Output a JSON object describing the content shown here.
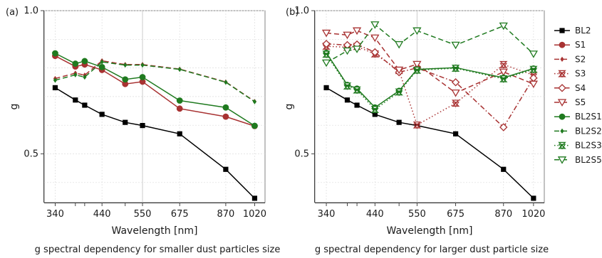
{
  "chart_data": [
    {
      "type": "line",
      "panel_label": "(a)",
      "caption": "g spectral dependency for smaller dust particles size",
      "xlabel": "Wavelength [nm]",
      "ylabel": "g",
      "xscale": "log",
      "xlim": [
        320,
        1080
      ],
      "ylim": [
        0.33,
        1.0
      ],
      "xticks": [
        340,
        440,
        550,
        675,
        870,
        1020
      ],
      "yticks": [
        0.5,
        1.0
      ],
      "ytick_labels": [
        "0.5",
        "1.0"
      ],
      "grid": true,
      "x": [
        340,
        380,
        400,
        440,
        500,
        550,
        675,
        870,
        1020
      ],
      "series": [
        {
          "name": "BL2",
          "color": "#000000",
          "dash": "solid",
          "marker": "square",
          "values": [
            0.731,
            0.688,
            0.67,
            0.638,
            0.61,
            0.599,
            0.57,
            0.446,
            0.345
          ]
        },
        {
          "name": "S1",
          "color": "#a83232",
          "dash": "solid",
          "marker": "circle",
          "values": [
            0.842,
            0.805,
            0.812,
            0.793,
            0.744,
            0.752,
            0.658,
            0.63,
            0.597
          ]
        },
        {
          "name": "S2",
          "color": "#a83232",
          "dash": "longdash",
          "marker": "diamond",
          "values": [
            0.763,
            0.782,
            0.775,
            0.825,
            0.812,
            0.812,
            0.796,
            0.751,
            0.683
          ]
        },
        {
          "name": "BL2S1",
          "color": "#1f7a1f",
          "dash": "solid",
          "marker": "circle",
          "values": [
            0.851,
            0.815,
            0.824,
            0.803,
            0.76,
            0.768,
            0.686,
            0.662,
            0.598
          ]
        },
        {
          "name": "BL2S2",
          "color": "#1f7a1f",
          "dash": "longdash",
          "marker": "diamond",
          "values": [
            0.757,
            0.776,
            0.768,
            0.821,
            0.81,
            0.81,
            0.795,
            0.75,
            0.682
          ]
        }
      ]
    },
    {
      "type": "line",
      "panel_label": "(b)",
      "caption": "g spectral dependency for larger dust particle size",
      "xlabel": "Wavelength [nm]",
      "ylabel": "g",
      "xscale": "log",
      "xlim": [
        320,
        1080
      ],
      "ylim": [
        0.33,
        1.0
      ],
      "xticks": [
        340,
        440,
        550,
        675,
        870,
        1020
      ],
      "yticks": [
        0.5,
        1.0
      ],
      "ytick_labels": [
        "0.5",
        "1.0"
      ],
      "grid": true,
      "x": [
        340,
        380,
        400,
        440,
        500,
        550,
        675,
        870,
        1020
      ],
      "series": [
        {
          "name": "BL2",
          "color": "#000000",
          "dash": "solid",
          "marker": "square",
          "values": [
            0.731,
            0.688,
            0.67,
            0.638,
            0.61,
            0.599,
            0.57,
            0.446,
            0.345
          ]
        },
        {
          "name": "S3",
          "color": "#a83232",
          "dash": "dotted",
          "marker": "hourglass",
          "values": [
            0.876,
            0.872,
            0.875,
            0.849,
            0.791,
            0.601,
            0.677,
            0.812,
            0.775
          ]
        },
        {
          "name": "S4",
          "color": "#a83232",
          "dash": "dashdot",
          "marker": "open-diamond",
          "values": [
            0.884,
            0.88,
            0.882,
            0.855,
            0.785,
            0.8,
            0.75,
            0.593,
            0.765
          ]
        },
        {
          "name": "S5",
          "color": "#a83232",
          "dash": "longdash",
          "marker": "down-triangle",
          "values": [
            0.922,
            0.915,
            0.93,
            0.905,
            0.793,
            0.813,
            0.713,
            0.786,
            0.744
          ]
        },
        {
          "name": "BL2S1",
          "color": "#1f7a1f",
          "dash": "solid",
          "marker": "circle",
          "values": [
            0.853,
            0.741,
            0.728,
            0.662,
            0.72,
            0.795,
            0.801,
            0.766,
            0.798
          ]
        },
        {
          "name": "BL2S3",
          "color": "#1f7a1f",
          "dash": "dotted",
          "marker": "hourglass",
          "values": [
            0.848,
            0.737,
            0.723,
            0.655,
            0.716,
            0.792,
            0.799,
            0.762,
            0.795
          ]
        },
        {
          "name": "BL2S5",
          "color": "#1f7a1f",
          "dash": "longdash",
          "marker": "down-triangle",
          "values": [
            0.818,
            0.86,
            0.866,
            0.951,
            0.882,
            0.93,
            0.88,
            0.947,
            0.849
          ]
        }
      ]
    }
  ],
  "legend": {
    "placement": "right",
    "entries": [
      {
        "name": "BL2",
        "color": "#000000",
        "dash": "solid",
        "marker": "square"
      },
      {
        "name": "S1",
        "color": "#a83232",
        "dash": "solid",
        "marker": "circle"
      },
      {
        "name": "S2",
        "color": "#a83232",
        "dash": "longdash",
        "marker": "diamond"
      },
      {
        "name": "S3",
        "color": "#a83232",
        "dash": "dotted",
        "marker": "hourglass"
      },
      {
        "name": "S4",
        "color": "#a83232",
        "dash": "dashdot",
        "marker": "open-diamond"
      },
      {
        "name": "S5",
        "color": "#a83232",
        "dash": "longdash",
        "marker": "down-triangle"
      },
      {
        "name": "BL2S1",
        "color": "#1f7a1f",
        "dash": "solid",
        "marker": "circle"
      },
      {
        "name": "BL2S2",
        "color": "#1f7a1f",
        "dash": "longdash",
        "marker": "diamond"
      },
      {
        "name": "BL2S3",
        "color": "#1f7a1f",
        "dash": "dotted",
        "marker": "hourglass"
      },
      {
        "name": "BL2S5",
        "color": "#1f7a1f",
        "dash": "longdash",
        "marker": "down-triangle"
      }
    ]
  }
}
